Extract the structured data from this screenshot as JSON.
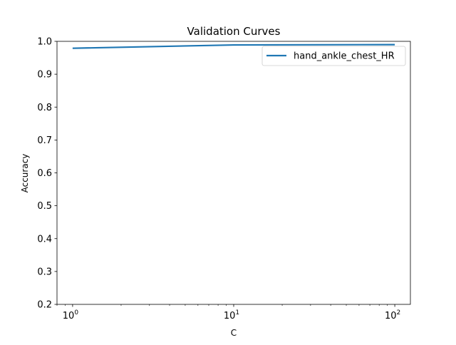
{
  "chart_data": {
    "type": "line",
    "title": "Validation Curves",
    "xlabel": "C",
    "ylabel": "Accuracy",
    "x_scale": "log",
    "xlim": [
      0.8,
      125
    ],
    "ylim": [
      0.2,
      1.0
    ],
    "grid": false,
    "legend_position": "upper-right",
    "x_ticks": [
      {
        "value": 1,
        "base": "10",
        "exp": "0"
      },
      {
        "value": 10,
        "base": "10",
        "exp": "1"
      },
      {
        "value": 100,
        "base": "10",
        "exp": "2"
      }
    ],
    "y_ticks": [
      {
        "value": 0.2,
        "label": "0.2"
      },
      {
        "value": 0.3,
        "label": "0.3"
      },
      {
        "value": 0.4,
        "label": "0.4"
      },
      {
        "value": 0.5,
        "label": "0.5"
      },
      {
        "value": 0.6,
        "label": "0.6"
      },
      {
        "value": 0.7,
        "label": "0.7"
      },
      {
        "value": 0.8,
        "label": "0.8"
      },
      {
        "value": 0.9,
        "label": "0.9"
      },
      {
        "value": 1.0,
        "label": "1.0"
      }
    ],
    "series": [
      {
        "name": "hand_ankle_chest_HR",
        "color": "#1f77b4",
        "x": [
          1,
          10,
          100
        ],
        "y": [
          0.979,
          0.989,
          0.99
        ]
      }
    ]
  }
}
